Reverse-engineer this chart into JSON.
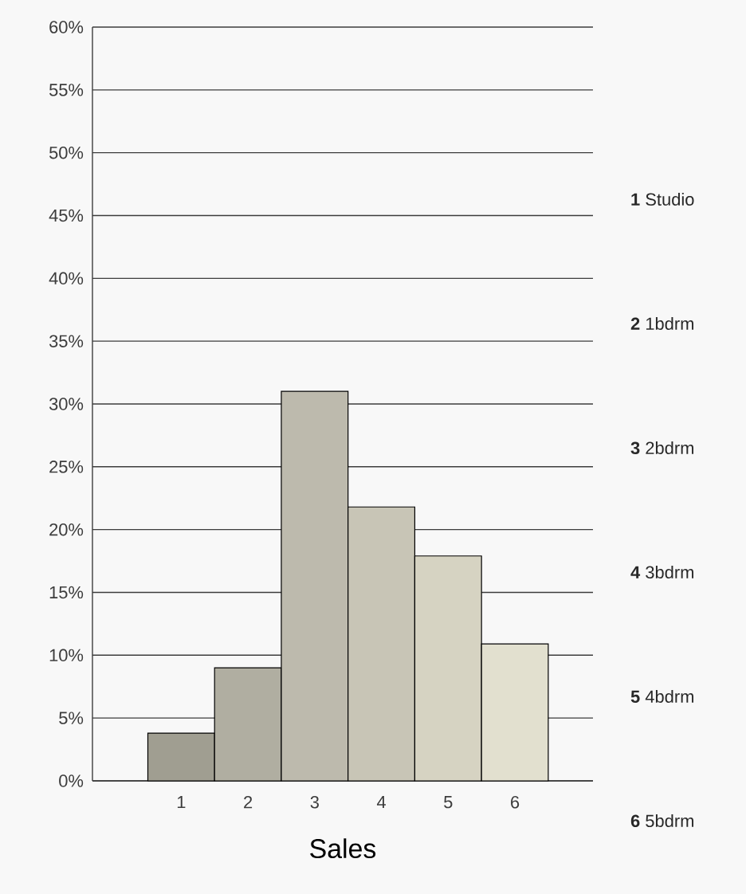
{
  "chart_data": {
    "type": "bar",
    "xlabel": "Sales",
    "categories": [
      "1",
      "2",
      "3",
      "4",
      "5",
      "6"
    ],
    "values": [
      3.8,
      9.0,
      31.0,
      21.8,
      17.9,
      10.9
    ],
    "colors": [
      "#a09e91",
      "#b0aea1",
      "#bdbaad",
      "#c8c5b6",
      "#d6d3c2",
      "#e2e0cf"
    ],
    "ylim": [
      0,
      60
    ],
    "yticks": [
      {
        "value": 0,
        "label": "0%"
      },
      {
        "value": 5,
        "label": "5%"
      },
      {
        "value": 10,
        "label": "10%"
      },
      {
        "value": 15,
        "label": "15%"
      },
      {
        "value": 20,
        "label": "20%"
      },
      {
        "value": 25,
        "label": "25%"
      },
      {
        "value": 30,
        "label": "30%"
      },
      {
        "value": 35,
        "label": "35%"
      },
      {
        "value": 40,
        "label": "40%"
      },
      {
        "value": 45,
        "label": "45%"
      },
      {
        "value": 50,
        "label": "50%"
      },
      {
        "value": 55,
        "label": "55%"
      },
      {
        "value": 60,
        "label": "60%"
      }
    ],
    "grid": "y",
    "annotations": [
      "**1** Studio",
      "**2** 1bdrm",
      "**3** 2bdrm",
      "**4** 3bdrm",
      "**5** 4bdrm",
      "**6** 5bdrm"
    ]
  }
}
